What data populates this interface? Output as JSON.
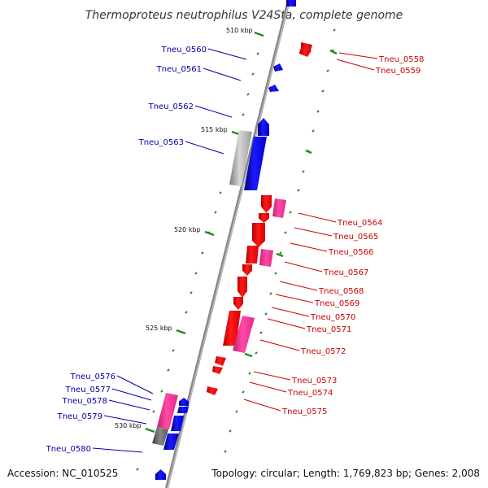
{
  "title": "Thermoproteus neutrophilus V24Sta, complete genome",
  "footer": {
    "accession": "Accession: NC_010525",
    "summary": "Topology: circular; Length: 1,769,823 bp; Genes: 2,008"
  },
  "colors": {
    "forward_gene": "#ff0000",
    "forward_pseudo": "#ff3399",
    "reverse_gene": "#0000ff",
    "reverse_pseudo": "#ff3399",
    "gray_block": "#aaaaaa",
    "ticks": "#228b22",
    "backbone": "#888888",
    "right_label": "#cc0000",
    "left_label": "#0000aa"
  },
  "kbp_ticks": [
    "510 kbp",
    "515 kbp",
    "520 kbp",
    "525 kbp",
    "530 kbp"
  ],
  "left_labels": [
    "Tneu_0560",
    "Tneu_0561",
    "Tneu_0562",
    "Tneu_0563",
    "Tneu_0576",
    "Tneu_0577",
    "Tneu_0578",
    "Tneu_0579",
    "Tneu_0580"
  ],
  "right_labels": [
    "Tneu_0558",
    "Tneu_0559",
    "Tneu_0564",
    "Tneu_0565",
    "Tneu_0566",
    "Tneu_0567",
    "Tneu_0568",
    "Tneu_0569",
    "Tneu_0570",
    "Tneu_0571",
    "Tneu_0572",
    "Tneu_0573",
    "Tneu_0574",
    "Tneu_0575"
  ]
}
